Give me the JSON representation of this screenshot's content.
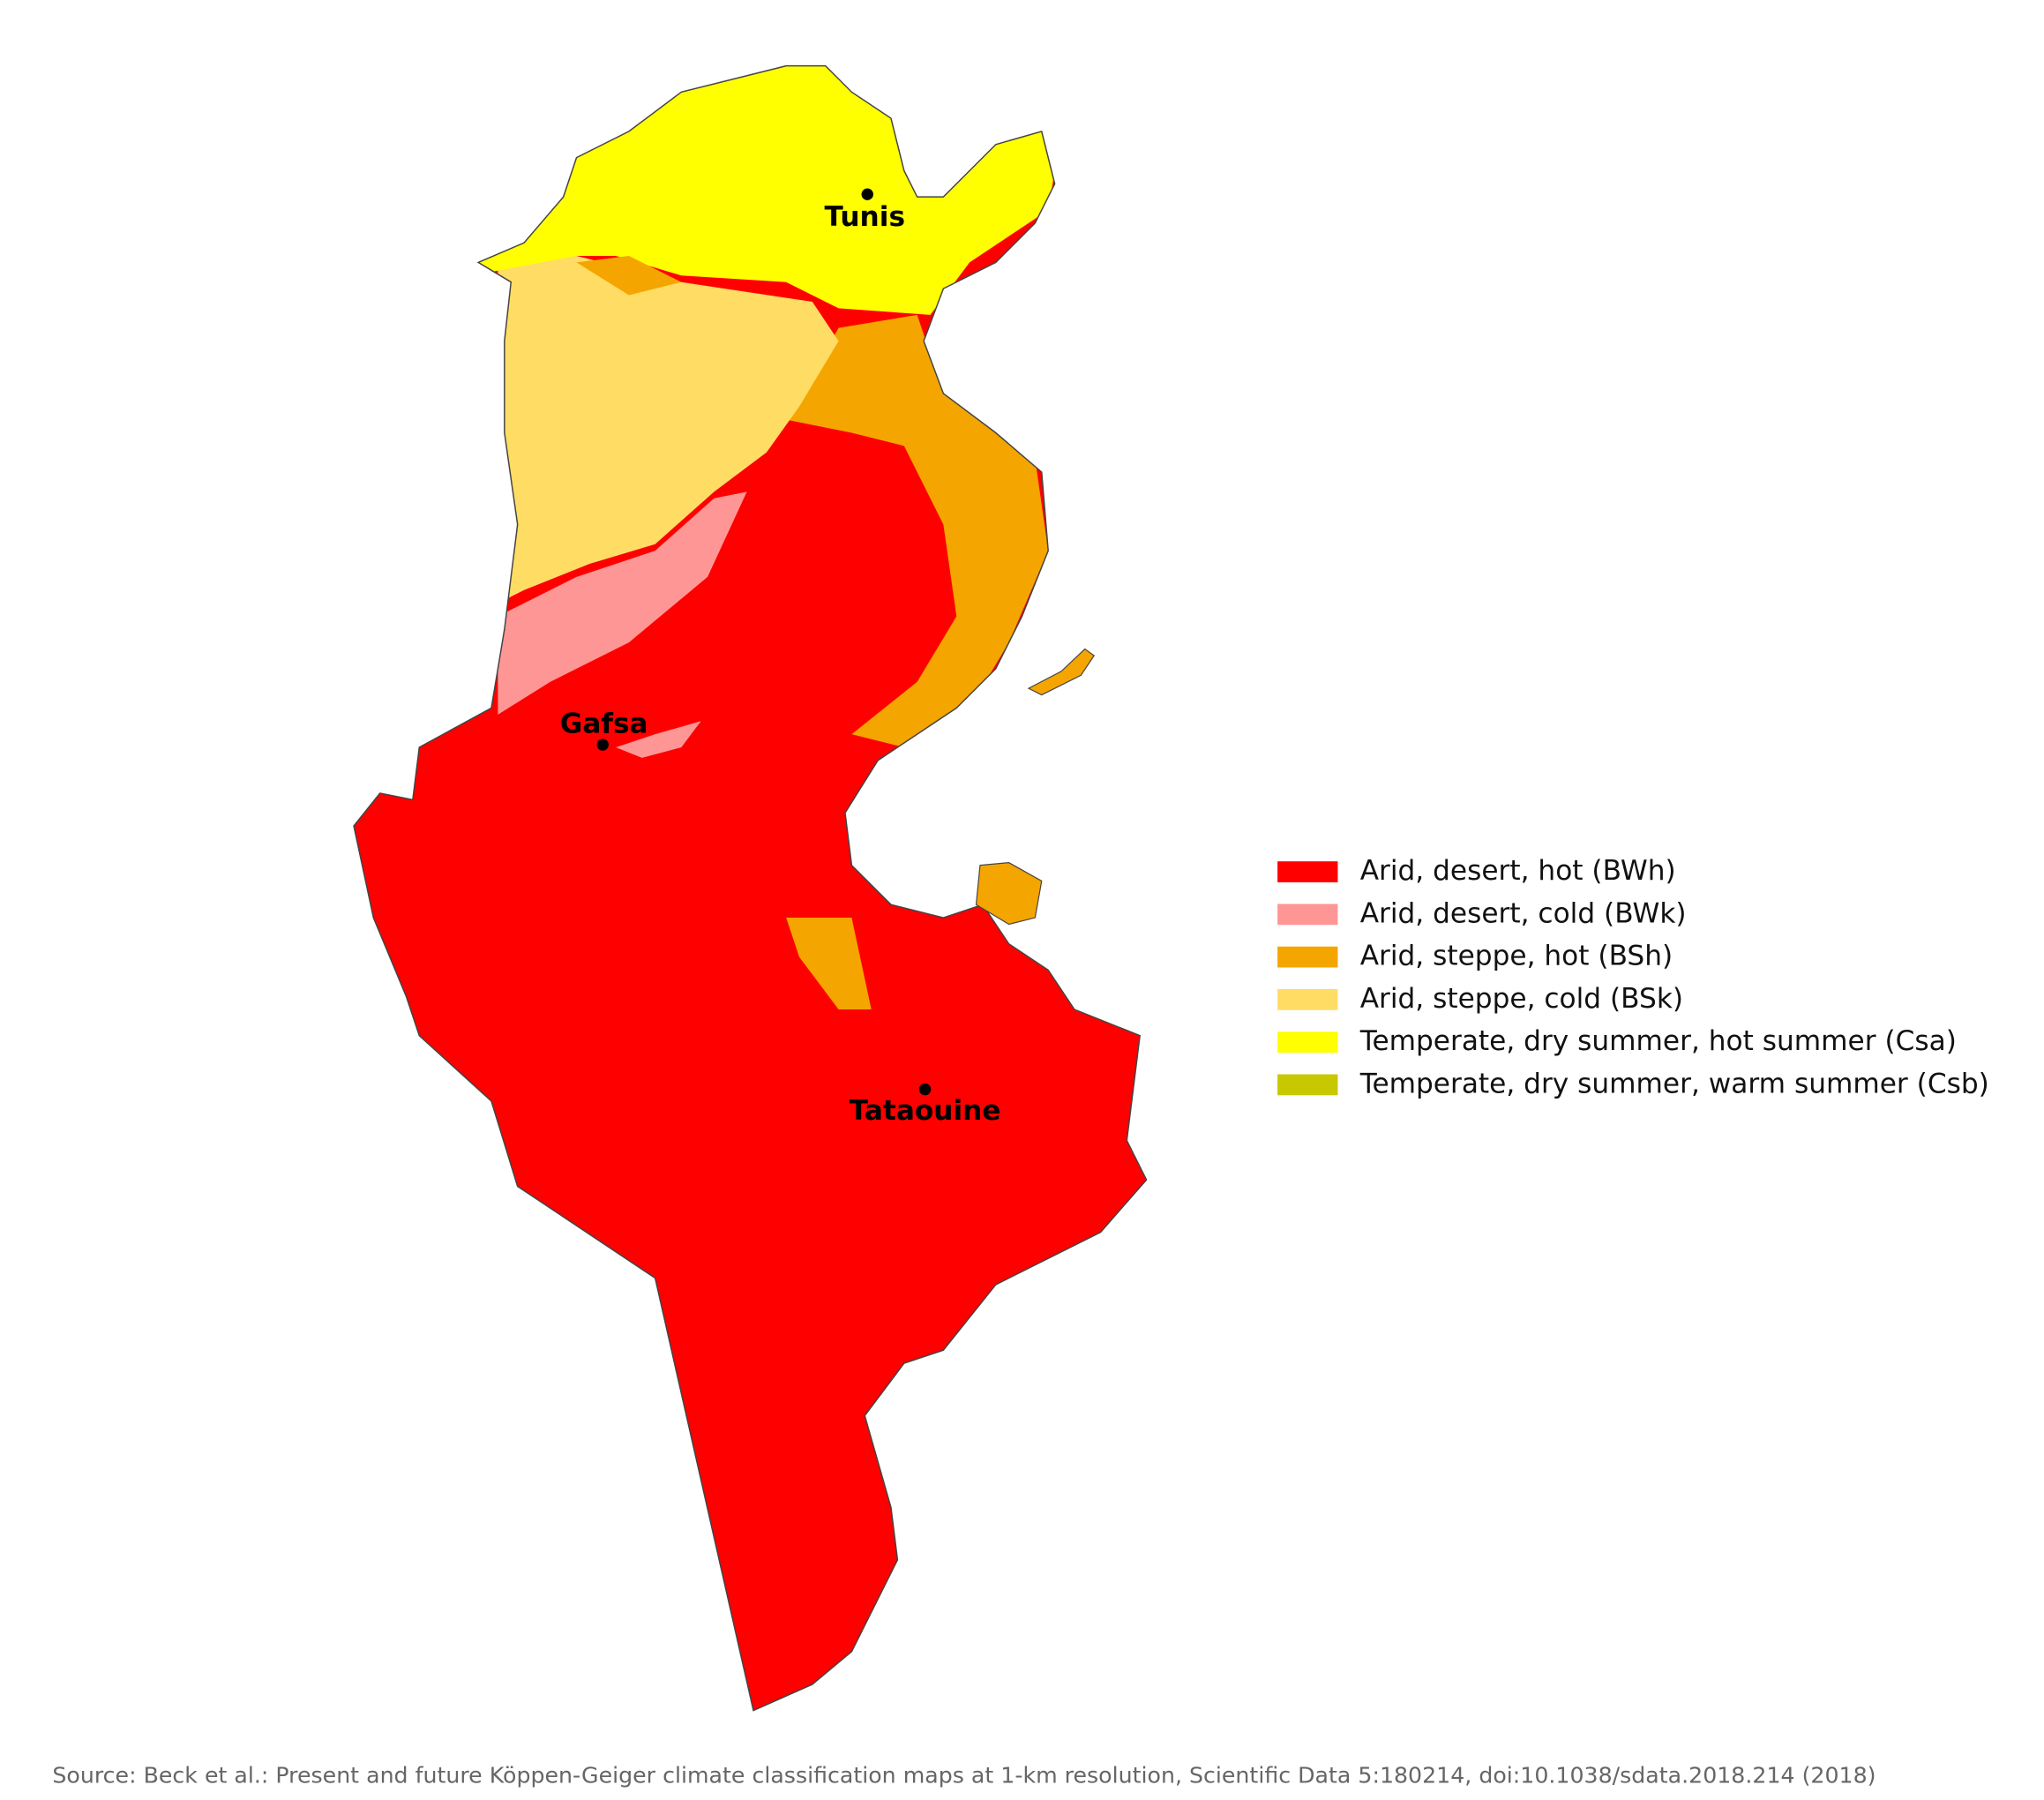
{
  "map": {
    "cities": [
      {
        "name": "Tunis"
      },
      {
        "name": "Gafsa"
      },
      {
        "name": "Tataouine"
      }
    ],
    "legend": [
      {
        "label": "Arid, desert, hot (BWh)",
        "color": "#ff0000"
      },
      {
        "label": "Arid, desert, cold (BWk)",
        "color": "#ff9696"
      },
      {
        "label": "Arid, steppe, hot (BSh)",
        "color": "#f5a500"
      },
      {
        "label": "Arid, steppe, cold (BSk)",
        "color": "#ffdc64"
      },
      {
        "label": "Temperate, dry summer, hot summer (Csa)",
        "color": "#ffff00"
      },
      {
        "label": "Temperate, dry summer, warm summer (Csb)",
        "color": "#c8c800"
      }
    ],
    "source": "Source: Beck et al.: Present and future Köppen-Geiger climate classification maps at 1-km resolution, Scientific Data 5:180214, doi:10.1038/sdata.2018.214 (2018)"
  }
}
